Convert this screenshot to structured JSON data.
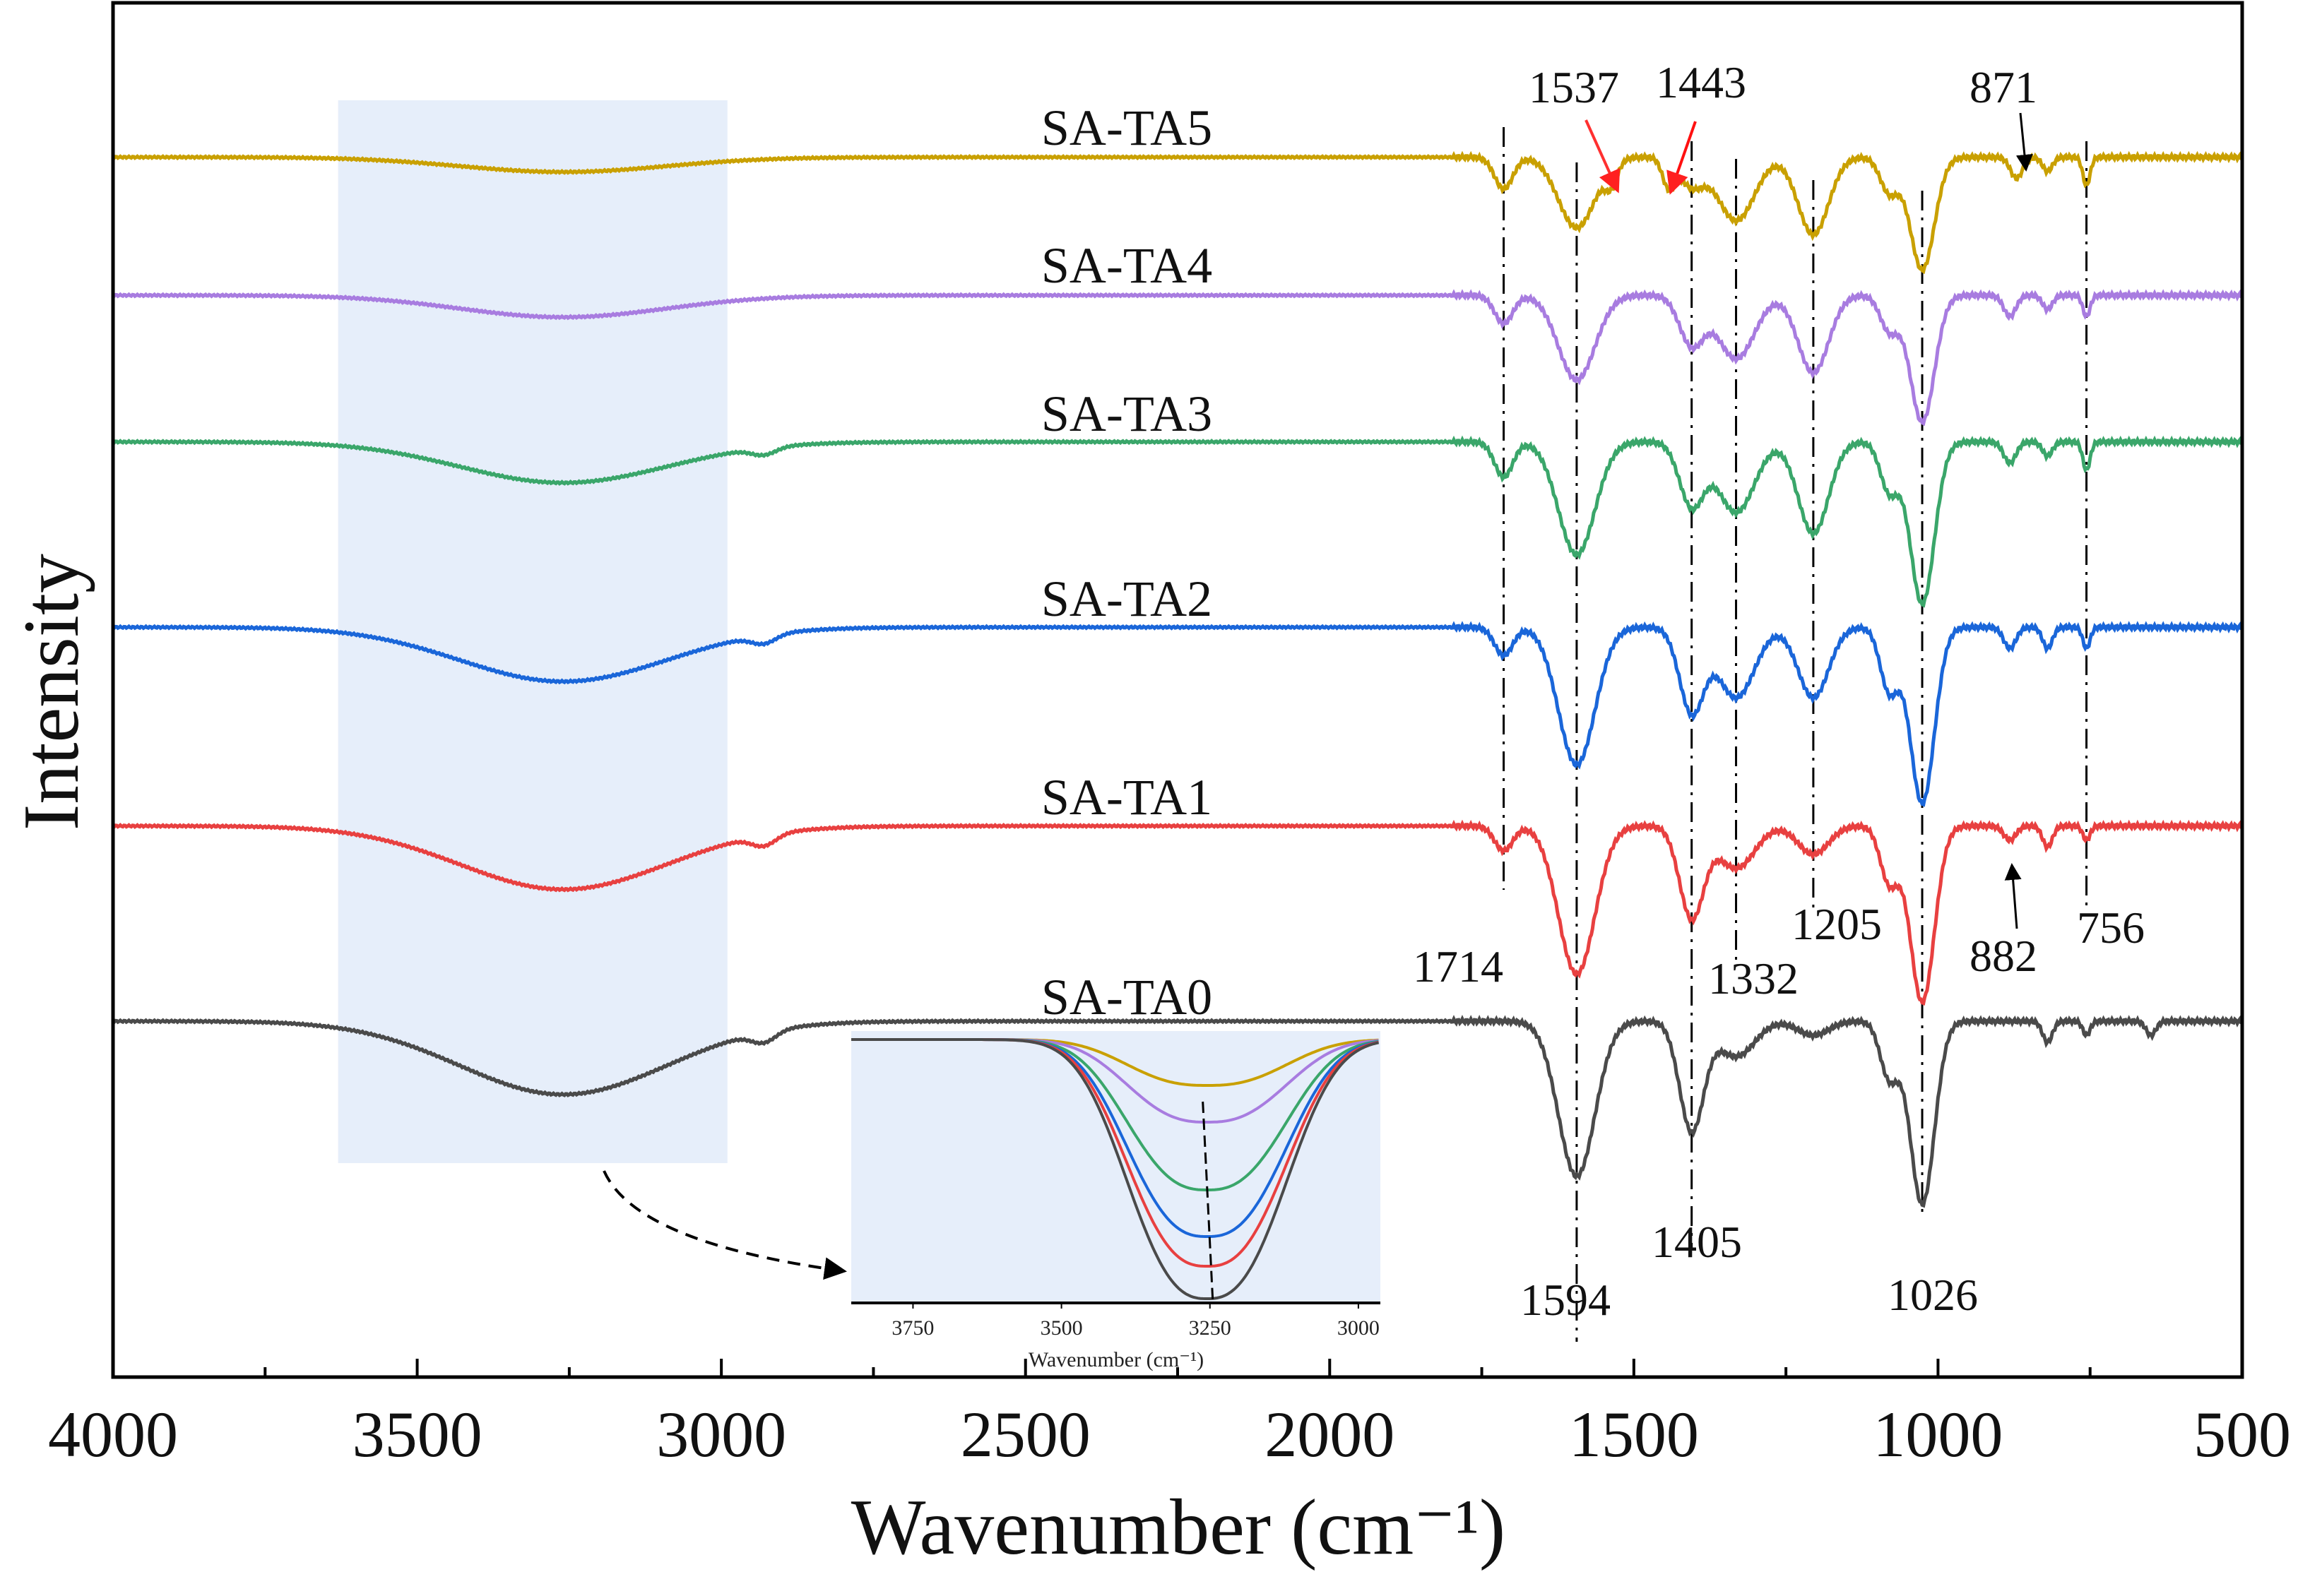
{
  "chart_data": {
    "type": "line",
    "title": "",
    "xlabel": "Wavenumber (cm⁻¹)",
    "ylabel": "Intensity",
    "xlim": [
      4000,
      500
    ],
    "ylim": [
      0,
      19.5
    ],
    "x_ticks": [
      "4000",
      "3500",
      "3000",
      "2500",
      "2000",
      "1500",
      "1000",
      "500"
    ],
    "grid": false,
    "highlight_region": [
      3630,
      2990
    ],
    "series": [
      {
        "name": "SA-TA5",
        "color": "#c9a000",
        "offset": 17.31,
        "peaks": [
          [
            3260,
            170,
            0.21
          ],
          [
            1714,
            15,
            0.45
          ],
          [
            1594,
            30,
            1.0
          ],
          [
            1537,
            10,
            0.3
          ],
          [
            1443,
            10,
            0.4
          ],
          [
            1405,
            20,
            0.4
          ],
          [
            1332,
            30,
            0.9
          ],
          [
            1205,
            25,
            1.1
          ],
          [
            1080,
            15,
            0.5
          ],
          [
            1026,
            20,
            1.6
          ],
          [
            871,
            10,
            0.3
          ],
          [
            820,
            8,
            0.2
          ],
          [
            756,
            6,
            0.4
          ]
        ]
      },
      {
        "name": "SA-TA4",
        "color": "#a87ce0",
        "offset": 15.35,
        "peaks": [
          [
            3260,
            170,
            0.31
          ],
          [
            1714,
            15,
            0.4
          ],
          [
            1594,
            30,
            1.2
          ],
          [
            1405,
            20,
            0.7
          ],
          [
            1332,
            30,
            0.9
          ],
          [
            1205,
            25,
            1.1
          ],
          [
            1080,
            15,
            0.5
          ],
          [
            1026,
            20,
            1.8
          ],
          [
            882,
            10,
            0.3
          ],
          [
            820,
            8,
            0.2
          ],
          [
            756,
            6,
            0.3
          ]
        ]
      },
      {
        "name": "SA-TA3",
        "color": "#3aa66a",
        "offset": 13.27,
        "peaks": [
          [
            3260,
            170,
            0.58
          ],
          [
            2930,
            20,
            0.1
          ],
          [
            1714,
            15,
            0.5
          ],
          [
            1594,
            30,
            1.6
          ],
          [
            1405,
            20,
            0.9
          ],
          [
            1332,
            30,
            1.0
          ],
          [
            1205,
            25,
            1.3
          ],
          [
            1080,
            15,
            0.7
          ],
          [
            1026,
            20,
            2.3
          ],
          [
            882,
            10,
            0.3
          ],
          [
            820,
            8,
            0.2
          ],
          [
            756,
            6,
            0.4
          ]
        ]
      },
      {
        "name": "SA-TA2",
        "color": "#1a66d9",
        "offset": 10.64,
        "peaks": [
          [
            3260,
            170,
            0.77
          ],
          [
            2930,
            20,
            0.12
          ],
          [
            1714,
            15,
            0.4
          ],
          [
            1594,
            30,
            1.95
          ],
          [
            1405,
            20,
            1.2
          ],
          [
            1332,
            30,
            1.0
          ],
          [
            1205,
            25,
            1.0
          ],
          [
            1080,
            15,
            0.9
          ],
          [
            1026,
            20,
            2.5
          ],
          [
            882,
            10,
            0.3
          ],
          [
            820,
            8,
            0.3
          ],
          [
            756,
            6,
            0.3
          ]
        ]
      },
      {
        "name": "SA-TA1",
        "color": "#e84040",
        "offset": 7.82,
        "peaks": [
          [
            3260,
            170,
            0.9
          ],
          [
            2930,
            20,
            0.15
          ],
          [
            1714,
            15,
            0.35
          ],
          [
            1594,
            30,
            2.1
          ],
          [
            1405,
            20,
            1.3
          ],
          [
            1332,
            30,
            0.6
          ],
          [
            1205,
            25,
            0.4
          ],
          [
            1080,
            15,
            0.8
          ],
          [
            1026,
            20,
            2.5
          ],
          [
            882,
            10,
            0.2
          ],
          [
            820,
            8,
            0.3
          ],
          [
            756,
            6,
            0.2
          ]
        ]
      },
      {
        "name": "SA-TA0",
        "color": "#4a4a4a",
        "offset": 5.05,
        "peaks": [
          [
            3260,
            170,
            1.04
          ],
          [
            2930,
            20,
            0.15
          ],
          [
            1594,
            30,
            2.2
          ],
          [
            1405,
            20,
            1.55
          ],
          [
            1332,
            30,
            0.5
          ],
          [
            1205,
            25,
            0.2
          ],
          [
            1080,
            15,
            0.8
          ],
          [
            1026,
            20,
            2.6
          ],
          [
            820,
            8,
            0.3
          ],
          [
            756,
            6,
            0.2
          ],
          [
            650,
            8,
            0.2
          ]
        ]
      }
    ],
    "marked_bands": [
      "1714",
      "1594",
      "1405",
      "1332",
      "1205",
      "1026",
      "756"
    ],
    "annotations": {
      "a1537": "1537",
      "a1443": "1443",
      "a871": "871",
      "a1714": "1714",
      "a1594": "1594",
      "a1405": "1405",
      "a1026": "1026",
      "a1332": "1332",
      "a1205": "1205",
      "a882": "882",
      "a756": "756"
    },
    "inset": {
      "xlim": [
        3854,
        2963
      ],
      "x_ticks": [
        "3750",
        "3500",
        "3250",
        "3000"
      ],
      "xlabel": "Wavenumber (cm⁻¹)",
      "peak_center": 3255,
      "depths": {
        "SA-TA5": 0.65,
        "SA-TA4": 1.17,
        "SA-TA3": 2.13,
        "SA-TA2": 2.79,
        "SA-TA1": 3.21,
        "SA-TA0": 3.67
      }
    }
  }
}
